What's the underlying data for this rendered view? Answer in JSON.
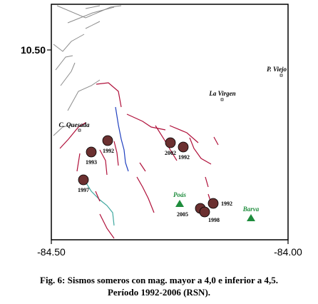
{
  "map": {
    "y_axis_label": "10.50",
    "x_axis_left": "-84.50",
    "x_axis_right": "-84.00",
    "places": [
      {
        "id": "pviejo",
        "label": "P. Viejo"
      },
      {
        "id": "lavirgen",
        "label": "La Virgen"
      },
      {
        "id": "cquesada",
        "label": "C. Quesada"
      },
      {
        "id": "poas",
        "label": "Poás"
      },
      {
        "id": "barva",
        "label": "Barva"
      }
    ],
    "earthquakes": [
      {
        "id": "eq1992a",
        "year": "1992"
      },
      {
        "id": "eq1993",
        "year": "1993"
      },
      {
        "id": "eq1997",
        "year": "1997"
      },
      {
        "id": "eq2002",
        "year": "2002"
      },
      {
        "id": "eq1992b",
        "year": "1992"
      },
      {
        "id": "eq1992c",
        "year": "1992"
      },
      {
        "id": "eq2005",
        "year": "2005"
      },
      {
        "id": "eq1998",
        "year": "1998"
      }
    ],
    "colors": {
      "quake_fill": "#6b3030",
      "volcano": "#1e8c3c",
      "fault": "#b0103a",
      "river": "#2040c0",
      "river_alt": "#40a8a0",
      "road": "#909090"
    }
  },
  "caption": {
    "line1": "Fig. 6: Sismos someros con mag. mayor a 4,0 e inferior a 4,5.",
    "line2": "Período 1992-2006 (RSN)."
  }
}
